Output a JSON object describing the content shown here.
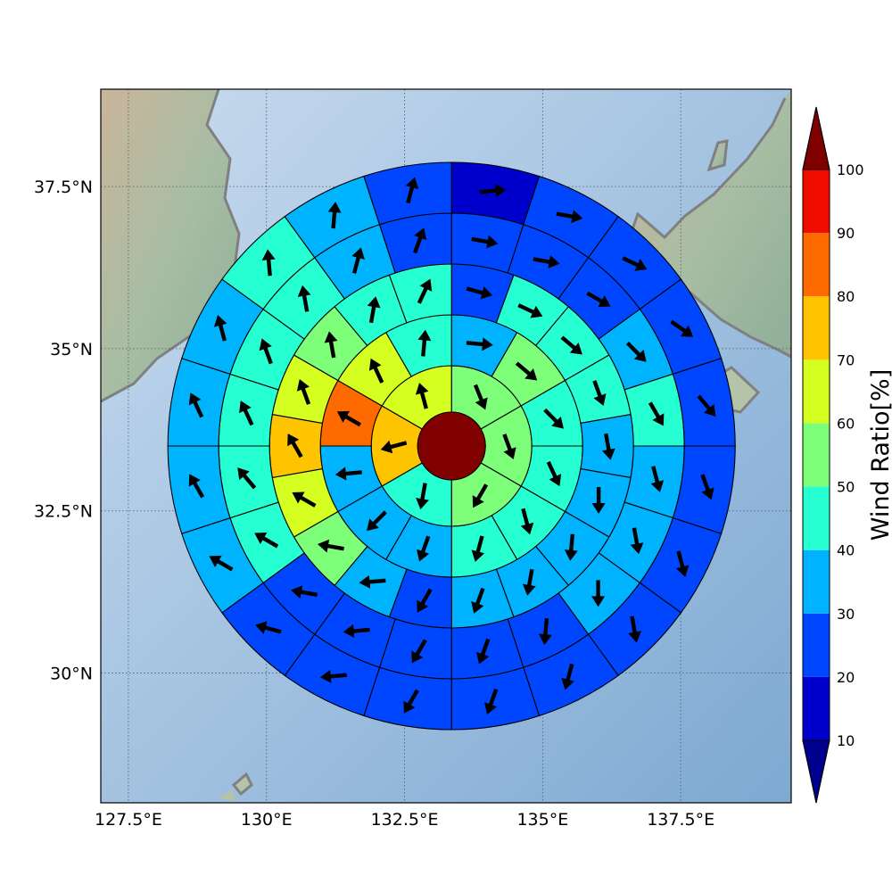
{
  "map": {
    "x_tick_labels": [
      "127.5°E",
      "130°E",
      "132.5°E",
      "135°E",
      "137.5°E"
    ],
    "x_tick_values": [
      127.5,
      130,
      132.5,
      135,
      137.5
    ],
    "y_tick_labels": [
      "37.5°N",
      "35°N",
      "32.5°N",
      "30°N"
    ],
    "y_tick_values": [
      37.5,
      35,
      32.5,
      30
    ],
    "lon_range": [
      127.0,
      139.5
    ],
    "lat_range": [
      28.0,
      39.0
    ],
    "center": {
      "lon": 133.35,
      "lat": 33.5
    },
    "gridlines": true,
    "land_color": "#b9c8b0",
    "sea_color": "#9fbfdc",
    "coastline_color": "#808080"
  },
  "colorbar": {
    "label": "Wind Ratio[%]",
    "tick_labels": [
      "10",
      "20",
      "30",
      "40",
      "50",
      "60",
      "70",
      "80",
      "90",
      "100"
    ],
    "levels": [
      10,
      20,
      30,
      40,
      50,
      60,
      70,
      80,
      90,
      100
    ],
    "colors": [
      "#0000cd",
      "#0046ff",
      "#00b3ff",
      "#26ffd2",
      "#7dff7a",
      "#d5ff21",
      "#ffc400",
      "#ff6a00",
      "#f00d00"
    ],
    "under_color": "#00008f",
    "over_color": "#800000"
  },
  "chart_data": {
    "type": "polar-sector-map",
    "center_value": 100,
    "rings": [
      {
        "ring": 1,
        "sector_angles": [
          0,
          60,
          120,
          180,
          240,
          300
        ],
        "values": [
          58,
          55,
          55,
          40,
          70,
          65
        ],
        "wind_dir": [
          158,
          160,
          210,
          190,
          255,
          345
        ]
      },
      {
        "ring": 2,
        "sector_angles": [
          0,
          30,
          60,
          90,
          120,
          150,
          180,
          210,
          240,
          270,
          300,
          330
        ],
        "values": [
          35,
          52,
          48,
          45,
          42,
          40,
          34,
          34,
          38,
          82,
          68,
          45
        ],
        "wind_dir": [
          95,
          130,
          135,
          155,
          165,
          195,
          200,
          225,
          265,
          300,
          335,
          5
        ]
      },
      {
        "ring": 3,
        "sector_angles": [
          0,
          20,
          40,
          60,
          80,
          100,
          120,
          140,
          160,
          180,
          200,
          220,
          240,
          260,
          280,
          300,
          320,
          340
        ],
        "values": [
          25,
          44,
          42,
          42,
          32,
          32,
          35,
          35,
          32,
          26,
          35,
          52,
          60,
          75,
          65,
          52,
          40,
          44
        ],
        "wind_dir": [
          105,
          115,
          130,
          160,
          170,
          180,
          185,
          190,
          200,
          210,
          265,
          280,
          300,
          330,
          340,
          350,
          10,
          25
        ]
      },
      {
        "ring": 4,
        "sector_angles": [
          0,
          18,
          36,
          54,
          72,
          90,
          108,
          126,
          144,
          162,
          180,
          198,
          216,
          234,
          252,
          270,
          288,
          306,
          324,
          342
        ],
        "values": [
          20,
          20,
          26,
          34,
          42,
          32,
          32,
          30,
          28,
          25,
          22,
          25,
          28,
          42,
          44,
          48,
          42,
          45,
          32,
          22
        ],
        "wind_dir": [
          100,
          100,
          120,
          135,
          150,
          165,
          170,
          180,
          185,
          200,
          210,
          265,
          280,
          300,
          320,
          335,
          340,
          350,
          15,
          20
        ]
      },
      {
        "ring": 5,
        "sector_angles": [
          0,
          18,
          36,
          54,
          72,
          90,
          108,
          126,
          144,
          162,
          180,
          198,
          216,
          234,
          252,
          270,
          288,
          306,
          324,
          342
        ],
        "values": [
          15,
          22,
          22,
          22,
          25,
          22,
          22,
          22,
          22,
          22,
          22,
          22,
          22,
          32,
          36,
          34,
          32,
          42,
          32,
          22
        ],
        "wind_dir": [
          85,
          100,
          115,
          125,
          140,
          160,
          165,
          170,
          195,
          200,
          210,
          265,
          285,
          300,
          330,
          335,
          345,
          355,
          5,
          15
        ]
      }
    ]
  }
}
